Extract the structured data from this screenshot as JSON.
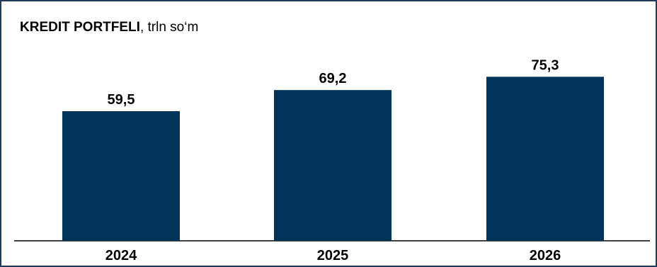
{
  "chart_data": {
    "type": "bar",
    "title": "KREDIT PORTFELI",
    "subtitle": ", trln so‘m",
    "categories": [
      "2024",
      "2025",
      "2026"
    ],
    "values": [
      59.5,
      69.2,
      75.3
    ],
    "value_labels": [
      "59,5",
      "69,2",
      "75,3"
    ],
    "xlabel": "",
    "ylabel": "",
    "ylim": [
      0,
      80
    ],
    "grid": false,
    "legend": "none",
    "bar_color": "#003359",
    "axis_color": "#000000",
    "border_color": "#1f3b5a"
  }
}
